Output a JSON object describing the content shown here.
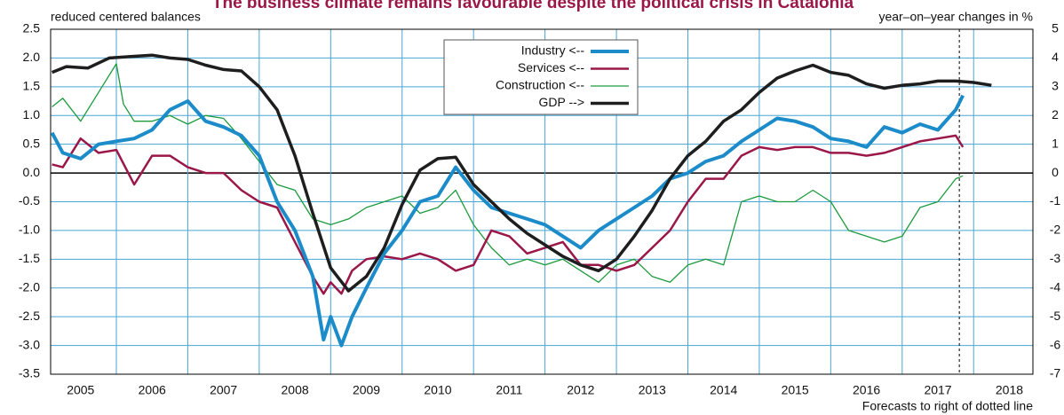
{
  "chart_data": {
    "type": "line",
    "title": "The business climate remains favourable despite the political crisis in Catalonia",
    "y_label": "reduced centered balances",
    "y2_label": "year–on–year changes in  %",
    "annotation": "Forecasts to right of dotted line",
    "forecast_start": 2017.8,
    "xlim": [
      2005.08,
      2018.83
    ],
    "xticks": [
      {
        "value": 2005.5,
        "label": "2005"
      },
      {
        "value": 2006.5,
        "label": "2006"
      },
      {
        "value": 2007.5,
        "label": "2007"
      },
      {
        "value": 2008.5,
        "label": "2008"
      },
      {
        "value": 2009.5,
        "label": "2009"
      },
      {
        "value": 2010.5,
        "label": "2010"
      },
      {
        "value": 2011.5,
        "label": "2011"
      },
      {
        "value": 2012.5,
        "label": "2012"
      },
      {
        "value": 2013.5,
        "label": "2013"
      },
      {
        "value": 2014.5,
        "label": "2014"
      },
      {
        "value": 2015.5,
        "label": "2015"
      },
      {
        "value": 2016.5,
        "label": "2016"
      },
      {
        "value": 2017.5,
        "label": "2017"
      },
      {
        "value": 2018.5,
        "label": "2018"
      }
    ],
    "x_grid": [
      2006,
      2007,
      2008,
      2009,
      2010,
      2011,
      2012,
      2013,
      2014,
      2015,
      2016,
      2017,
      2018
    ],
    "ylim": [
      -3.5,
      2.5
    ],
    "yticks": [
      2.5,
      {
        "value": 2,
        "label": "2.0"
      },
      1.5,
      {
        "value": 1,
        "label": "1.0"
      },
      0.5,
      {
        "value": 0,
        "label": "0.0"
      },
      -0.5,
      {
        "value": -1,
        "label": "-1.0"
      },
      -1.5,
      {
        "value": -2,
        "label": "-2.0"
      },
      -2.5,
      {
        "value": -3,
        "label": "-3.0"
      },
      -3.5
    ],
    "y2lim": [
      -7,
      5
    ],
    "y2ticks": [
      5,
      4,
      3,
      2,
      1,
      0,
      -1,
      -2,
      -3,
      -4,
      -5,
      -6,
      -7
    ],
    "grid": true,
    "legend": "top-center",
    "series": [
      {
        "name": "Industry <--",
        "color": "#1b8cc9",
        "width": 4,
        "x": [
          2005.1,
          2005.25,
          2005.5,
          2005.75,
          2006.0,
          2006.25,
          2006.5,
          2006.75,
          2007.0,
          2007.25,
          2007.5,
          2007.75,
          2008.0,
          2008.25,
          2008.5,
          2008.75,
          2008.9,
          2009.0,
          2009.15,
          2009.3,
          2009.5,
          2009.75,
          2010.0,
          2010.25,
          2010.5,
          2010.75,
          2011.0,
          2011.25,
          2011.5,
          2011.75,
          2012.0,
          2012.25,
          2012.5,
          2012.75,
          2013.0,
          2013.25,
          2013.5,
          2013.75,
          2014.0,
          2014.25,
          2014.5,
          2014.75,
          2015.0,
          2015.25,
          2015.5,
          2015.75,
          2016.0,
          2016.25,
          2016.5,
          2016.75,
          2017.0,
          2017.25,
          2017.5,
          2017.75,
          2017.85
        ],
        "values": [
          0.7,
          0.35,
          0.25,
          0.5,
          0.55,
          0.6,
          0.75,
          1.1,
          1.25,
          0.9,
          0.8,
          0.65,
          0.3,
          -0.5,
          -1.0,
          -1.8,
          -2.9,
          -2.5,
          -3.0,
          -2.5,
          -2.0,
          -1.4,
          -1.0,
          -0.5,
          -0.4,
          0.1,
          -0.3,
          -0.6,
          -0.7,
          -0.8,
          -0.9,
          -1.1,
          -1.3,
          -1.0,
          -0.8,
          -0.6,
          -0.4,
          -0.1,
          0.0,
          0.2,
          0.3,
          0.55,
          0.75,
          0.95,
          0.9,
          0.8,
          0.6,
          0.55,
          0.45,
          0.8,
          0.7,
          0.85,
          0.75,
          1.1,
          1.35
        ]
      },
      {
        "name": "Services <--",
        "color": "#9a1748",
        "width": 2.5,
        "x": [
          2005.1,
          2005.25,
          2005.5,
          2005.75,
          2006.0,
          2006.25,
          2006.5,
          2006.75,
          2007.0,
          2007.25,
          2007.5,
          2007.75,
          2008.0,
          2008.25,
          2008.5,
          2008.75,
          2008.9,
          2009.0,
          2009.15,
          2009.3,
          2009.5,
          2009.75,
          2010.0,
          2010.25,
          2010.5,
          2010.75,
          2011.0,
          2011.25,
          2011.5,
          2011.75,
          2012.0,
          2012.25,
          2012.5,
          2012.75,
          2013.0,
          2013.25,
          2013.5,
          2013.75,
          2014.0,
          2014.25,
          2014.5,
          2014.75,
          2015.0,
          2015.25,
          2015.5,
          2015.75,
          2016.0,
          2016.25,
          2016.5,
          2016.75,
          2017.0,
          2017.25,
          2017.5,
          2017.75,
          2017.85
        ],
        "values": [
          0.15,
          0.1,
          0.6,
          0.35,
          0.4,
          -0.2,
          0.3,
          0.3,
          0.1,
          0.0,
          0.0,
          -0.3,
          -0.5,
          -0.6,
          -1.2,
          -1.8,
          -2.1,
          -1.9,
          -2.1,
          -1.7,
          -1.5,
          -1.45,
          -1.5,
          -1.4,
          -1.5,
          -1.7,
          -1.6,
          -1.0,
          -1.1,
          -1.4,
          -1.3,
          -1.2,
          -1.6,
          -1.6,
          -1.7,
          -1.6,
          -1.3,
          -1.0,
          -0.5,
          -0.1,
          -0.1,
          0.3,
          0.45,
          0.4,
          0.45,
          0.45,
          0.35,
          0.35,
          0.3,
          0.35,
          0.45,
          0.55,
          0.6,
          0.65,
          0.45
        ]
      },
      {
        "name": "Construction <--",
        "color": "#1c9a3c",
        "width": 1.3,
        "x": [
          2005.1,
          2005.25,
          2005.5,
          2005.75,
          2006.0,
          2006.1,
          2006.25,
          2006.5,
          2006.75,
          2007.0,
          2007.25,
          2007.5,
          2007.75,
          2008.0,
          2008.25,
          2008.5,
          2008.75,
          2009.0,
          2009.25,
          2009.5,
          2009.75,
          2010.0,
          2010.25,
          2010.5,
          2010.75,
          2011.0,
          2011.25,
          2011.5,
          2011.75,
          2012.0,
          2012.25,
          2012.5,
          2012.75,
          2013.0,
          2013.25,
          2013.5,
          2013.75,
          2014.0,
          2014.25,
          2014.5,
          2014.75,
          2015.0,
          2015.25,
          2015.5,
          2015.75,
          2016.0,
          2016.25,
          2016.5,
          2016.75,
          2017.0,
          2017.25,
          2017.5,
          2017.75,
          2017.85
        ],
        "values": [
          1.15,
          1.3,
          0.9,
          1.4,
          1.9,
          1.2,
          0.9,
          0.9,
          1.0,
          0.85,
          1.0,
          0.95,
          0.6,
          0.2,
          -0.2,
          -0.3,
          -0.8,
          -0.9,
          -0.8,
          -0.6,
          -0.5,
          -0.4,
          -0.7,
          -0.6,
          -0.3,
          -0.9,
          -1.3,
          -1.6,
          -1.5,
          -1.6,
          -1.5,
          -1.7,
          -1.9,
          -1.6,
          -1.5,
          -1.8,
          -1.9,
          -1.6,
          -1.5,
          -1.6,
          -0.5,
          -0.4,
          -0.5,
          -0.5,
          -0.3,
          -0.5,
          -1.0,
          -1.1,
          -1.2,
          -1.1,
          -0.6,
          -0.5,
          -0.1,
          -0.05
        ]
      },
      {
        "name": "GDP -->",
        "color": "#1e1e1e",
        "width": 3.5,
        "axis": "y2",
        "x": [
          2005.1,
          2005.3,
          2005.6,
          2005.9,
          2006.2,
          2006.5,
          2006.75,
          2007.0,
          2007.25,
          2007.5,
          2007.75,
          2008.0,
          2008.25,
          2008.5,
          2008.75,
          2009.0,
          2009.25,
          2009.5,
          2009.75,
          2010.0,
          2010.25,
          2010.5,
          2010.75,
          2011.0,
          2011.25,
          2011.5,
          2011.75,
          2012.0,
          2012.25,
          2012.5,
          2012.75,
          2013.0,
          2013.25,
          2013.5,
          2013.75,
          2014.0,
          2014.25,
          2014.5,
          2014.75,
          2015.0,
          2015.25,
          2015.5,
          2015.75,
          2016.0,
          2016.25,
          2016.5,
          2016.75,
          2017.0,
          2017.25,
          2017.5,
          2017.75,
          2018.0,
          2018.25
        ],
        "values": [
          3.5,
          3.7,
          3.65,
          4.0,
          4.05,
          4.1,
          4.0,
          3.95,
          3.75,
          3.6,
          3.55,
          3.0,
          2.2,
          0.6,
          -1.4,
          -3.3,
          -4.1,
          -3.6,
          -2.6,
          -1.1,
          0.1,
          0.5,
          0.55,
          -0.4,
          -1.0,
          -1.6,
          -2.1,
          -2.5,
          -2.9,
          -3.2,
          -3.4,
          -3.0,
          -2.2,
          -1.3,
          -0.2,
          0.6,
          1.1,
          1.8,
          2.2,
          2.8,
          3.3,
          3.55,
          3.75,
          3.5,
          3.4,
          3.1,
          2.95,
          3.05,
          3.1,
          3.2,
          3.2,
          3.15,
          3.05
        ]
      }
    ]
  }
}
